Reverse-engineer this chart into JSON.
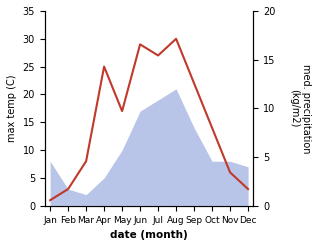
{
  "months": [
    "Jan",
    "Feb",
    "Mar",
    "Apr",
    "May",
    "Jun",
    "Jul",
    "Aug",
    "Sep",
    "Oct",
    "Nov",
    "Dec"
  ],
  "temperature": [
    1,
    3,
    8,
    25,
    17,
    29,
    27,
    30,
    22,
    14,
    6,
    3
  ],
  "precipitation": [
    8,
    3,
    2,
    5,
    10,
    17,
    19,
    21,
    14,
    8,
    8,
    7
  ],
  "temp_color": "#c0392b",
  "precip_fill_color": "#b8c4e8",
  "temp_ylim": [
    0,
    35
  ],
  "precip_ylim": [
    0,
    35
  ],
  "right_ylim": [
    0,
    20
  ],
  "temp_yticks": [
    0,
    5,
    10,
    15,
    20,
    25,
    30,
    35
  ],
  "right_yticks": [
    0,
    5,
    10,
    15,
    20
  ],
  "xlabel": "date (month)",
  "ylabel_left": "max temp (C)",
  "ylabel_right": "med. precipitation\n(kg/m2)",
  "fig_width": 3.18,
  "fig_height": 2.47,
  "dpi": 100
}
